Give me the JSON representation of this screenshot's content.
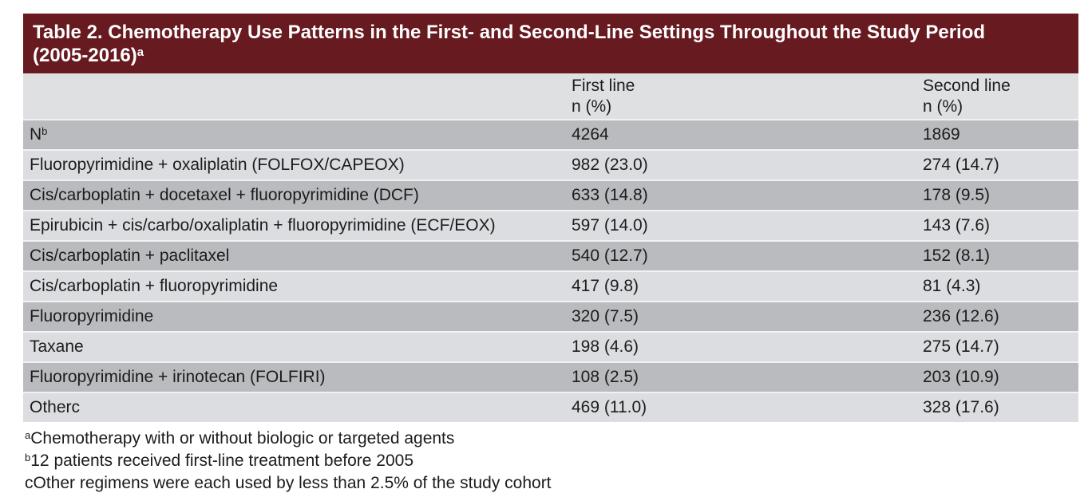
{
  "table": {
    "title_line1": "Table 2. Chemotherapy Use Patterns in the First- and Second-Line Settings Throughout the Study Period",
    "title_line2": "(2005-2016)",
    "title_superscript": "a",
    "column_headers": {
      "first_line_col": {
        "line1": "First line",
        "line2": "n (%)"
      },
      "second_line_col": {
        "line1": "Second line",
        "line2": "n (%)"
      }
    },
    "rows": [
      {
        "label": "N",
        "label_sup": "b",
        "first_line": "4264",
        "second_line": "1869"
      },
      {
        "label": "Fluoropyrimidine + oxaliplatin (FOLFOX/CAPEOX)",
        "first_line": "982 (23.0)",
        "second_line": "274 (14.7)"
      },
      {
        "label": "Cis/carboplatin + docetaxel + fluoropyrimidine (DCF)",
        "first_line": "633 (14.8)",
        "second_line": "178 (9.5)"
      },
      {
        "label": "Epirubicin + cis/carbo/oxaliplatin + fluoropyrimidine (ECF/EOX)",
        "first_line": "597 (14.0)",
        "second_line": "143 (7.6)"
      },
      {
        "label": "Cis/carboplatin + paclitaxel",
        "first_line": "540 (12.7)",
        "second_line": "152 (8.1)"
      },
      {
        "label": "Cis/carboplatin + fluoropyrimidine",
        "first_line": "417 (9.8)",
        "second_line": "81 (4.3)"
      },
      {
        "label": "Fluoropyrimidine",
        "first_line": "320 (7.5)",
        "second_line": "236 (12.6)"
      },
      {
        "label": "Taxane",
        "first_line": "198 (4.6)",
        "second_line": "275 (14.7)"
      },
      {
        "label": "Fluoropyrimidine + irinotecan (FOLFIRI)",
        "first_line": "108 (2.5)",
        "second_line": "203 (10.9)"
      },
      {
        "label": "Otherc",
        "first_line": "469 (11.0)",
        "second_line": "328 (17.6)"
      }
    ],
    "footnotes": [
      {
        "marker": "a",
        "text": "Chemotherapy with or without biologic or targeted agents"
      },
      {
        "marker": "b",
        "text": "12 patients received first-line treatment before 2005"
      },
      {
        "marker": "c",
        "text": "Other regimens were each used by less than 2.5% of the study cohort"
      }
    ],
    "colors": {
      "header_bg": "#671a1f",
      "header_text": "#ffffff",
      "column_header_bg": "#dfe0e2",
      "row_dark_bg": "#babbbe",
      "row_light_bg": "#dcdde0",
      "separator": "#f2f2f4",
      "body_text": "#1c1c1c"
    }
  }
}
